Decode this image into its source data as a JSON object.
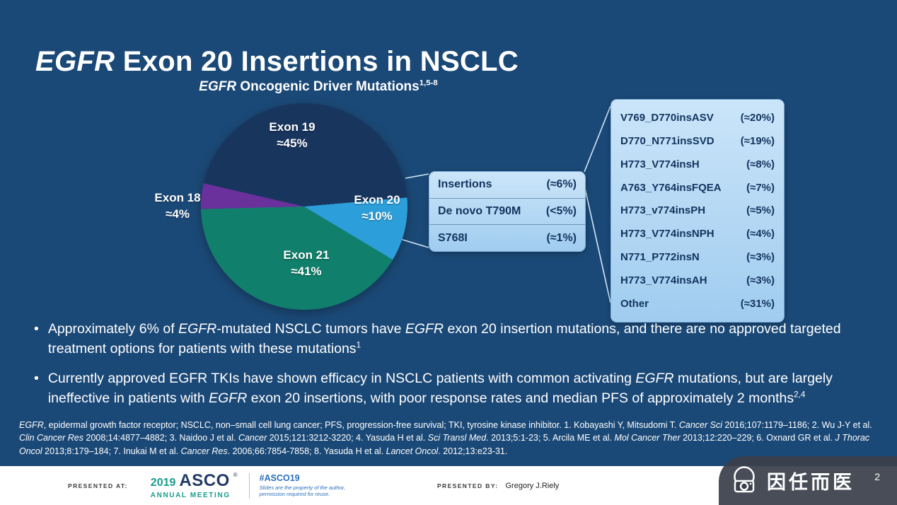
{
  "slide": {
    "page_number": "2",
    "background_color": "#1B4977"
  },
  "title": {
    "segments": [
      {
        "text": "EGFR",
        "italic": true
      },
      {
        "text": " Exon 20 Insertions in NSCLC"
      }
    ]
  },
  "chart_data": {
    "type": "pie",
    "title_segments": [
      {
        "text": "EGFR",
        "italic": true
      },
      {
        "text": " Oncogenic Driver Mutations"
      },
      {
        "text": "1,5-8",
        "sup": true
      }
    ],
    "slices": [
      {
        "label": "Exon 19",
        "display": "≈45%",
        "value": 45,
        "color": "#18355E"
      },
      {
        "label": "Exon 20",
        "display": "≈10%",
        "value": 10,
        "color": "#2C9FDA"
      },
      {
        "label": "Exon 21",
        "display": "≈41%",
        "value": 41,
        "color": "#107F6B"
      },
      {
        "label": "Exon 18",
        "display": "≈4%",
        "value": 4,
        "color": "#6A309C"
      }
    ],
    "exon20_box": {
      "rows": [
        {
          "label": "Insertions",
          "value": "(≈6%)"
        },
        {
          "label": "De novo T790M",
          "value": "(<5%)"
        },
        {
          "label": "S768I",
          "value": "(≈1%)"
        }
      ]
    },
    "insertions_box": {
      "rows": [
        {
          "label": "V769_D770insASV",
          "value": "(≈20%)"
        },
        {
          "label": "D770_N771insSVD",
          "value": "(≈19%)"
        },
        {
          "label": "H773_V774insH",
          "value": "(≈8%)"
        },
        {
          "label": "A763_Y764insFQEA",
          "value": "(≈7%)"
        },
        {
          "label": "H773_v774insPH",
          "value": "(≈5%)"
        },
        {
          "label": "H773_V774insNPH",
          "value": "(≈4%)"
        },
        {
          "label": "N771_P772insN",
          "value": "(≈3%)"
        },
        {
          "label": "H773_V774insAH",
          "value": "(≈3%)"
        },
        {
          "label": "Other",
          "value": "(≈31%)"
        }
      ]
    }
  },
  "bullets": [
    {
      "segments": [
        {
          "text": "Approximately 6% of "
        },
        {
          "text": "EGFR",
          "italic": true
        },
        {
          "text": "-mutated NSCLC tumors have "
        },
        {
          "text": "EGFR",
          "italic": true
        },
        {
          "text": " exon 20 insertion mutations, and there are no approved targeted treatment options for patients with these mutations"
        },
        {
          "text": "1",
          "sup": true
        }
      ]
    },
    {
      "segments": [
        {
          "text": "Currently approved EGFR TKIs have shown efficacy in NSCLC patients with common activating "
        },
        {
          "text": "EGFR",
          "italic": true
        },
        {
          "text": " mutations, but are largely ineffective in patients with "
        },
        {
          "text": "EGFR",
          "italic": true
        },
        {
          "text": " exon 20 insertions, with poor response rates and median PFS of approximately 2 months"
        },
        {
          "text": "2,4",
          "sup": true
        }
      ]
    }
  ],
  "footnote": {
    "segments": [
      {
        "text": "EGFR",
        "italic": true
      },
      {
        "text": ", epidermal growth factor receptor; NSCLC, non–small cell lung cancer; PFS, progression-free survival; TKI, tyrosine kinase inhibitor. 1. Kobayashi Y, Mitsudomi T. "
      },
      {
        "text": "Cancer Sci",
        "italic": true
      },
      {
        "text": " 2016;107:1179–1186;  2. Wu J-Y et al. "
      },
      {
        "text": "Clin Cancer Res",
        "italic": true
      },
      {
        "text": " 2008;14:4877–4882;  3. Naidoo J et al. "
      },
      {
        "text": "Cancer",
        "italic": true
      },
      {
        "text": " 2015;121:3212-3220;  4. Yasuda H et al. "
      },
      {
        "text": "Sci Transl Med",
        "italic": true
      },
      {
        "text": ". 2013;5:1-23;  5. Arcila ME et al. "
      },
      {
        "text": "Mol Cancer Ther",
        "italic": true
      },
      {
        "text": " 2013;12:220–229;  6. Oxnard GR et al. "
      },
      {
        "text": "J Thorac Oncol",
        "italic": true
      },
      {
        "text": " 2013;8:179–184;  7. Inukai M et al. "
      },
      {
        "text": "Cancer Res",
        "italic": true
      },
      {
        "text": ". 2006;66:7854-7858;  8. Yasuda H et al. "
      },
      {
        "text": "Lancet Oncol",
        "italic": true
      },
      {
        "text": ". 2012;13:e23-31."
      }
    ]
  },
  "footer": {
    "presented_at_label": "PRESENTED AT:",
    "logo_year": "2019",
    "logo_name": "ASCO",
    "logo_reg": "®",
    "logo_sub": "ANNUAL MEETING",
    "hashtag": "#ASCO19",
    "permission_line1": "Slides are the property of the author,",
    "permission_line2": "permission required for reuse.",
    "presented_by_label": "PRESENTED BY:",
    "presenter": "Gregory J.Riely"
  },
  "watermark": {
    "text": "因任而医"
  },
  "colors": {
    "background": "#1B4977",
    "callout_fill": "#AFD4F2",
    "callout_border": "#7FB2E0",
    "callout_text": "#12345F",
    "asco_teal": "#1A9B8F",
    "asco_navy": "#203A66",
    "hashtag_blue": "#2A6EBB"
  }
}
